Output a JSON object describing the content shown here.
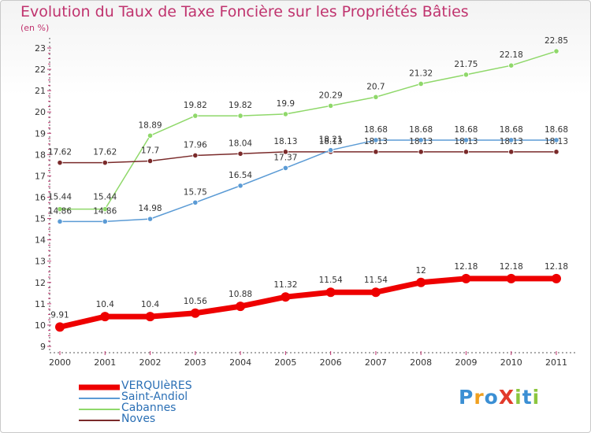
{
  "header": {
    "title": "Evolution du Taux de Taxe Foncière sur les Propriétés Bâties",
    "unit": "(en %)"
  },
  "logo": {
    "text": "ProXiti"
  },
  "chart_data": {
    "type": "line",
    "title": "Evolution du Taux de Taxe Foncière sur les Propriétés Bâties",
    "ylabel": "(en %)",
    "xlabel": "",
    "x": [
      "2000",
      "2001",
      "2002",
      "2003",
      "2004",
      "2005",
      "2006",
      "2007",
      "2008",
      "2009",
      "2010",
      "2011"
    ],
    "ylim": [
      9,
      23
    ],
    "yticks": [
      9,
      10,
      11,
      12,
      13,
      14,
      15,
      16,
      17,
      18,
      19,
      20,
      21,
      22,
      23
    ],
    "grid": "none",
    "legend_position": "bottom-left",
    "series": [
      {
        "name": "VERQUIèRES",
        "color": "#ee0000",
        "values": [
          9.91,
          10.4,
          10.4,
          10.56,
          10.88,
          11.32,
          11.54,
          11.54,
          12,
          12.18,
          12.18,
          12.18
        ]
      },
      {
        "name": "Saint-Andiol",
        "color": "#5b9bd5",
        "values": [
          14.86,
          14.86,
          14.98,
          15.75,
          16.54,
          17.37,
          18.21,
          18.68,
          18.68,
          18.68,
          18.68,
          18.68
        ]
      },
      {
        "name": "Cabannes",
        "color": "#8fd86a",
        "values": [
          15.44,
          15.44,
          18.89,
          19.82,
          19.82,
          19.9,
          20.29,
          20.7,
          21.32,
          21.75,
          22.18,
          22.85
        ]
      },
      {
        "name": "Noves",
        "color": "#7a2a2a",
        "values": [
          17.62,
          17.62,
          17.7,
          17.96,
          18.04,
          18.13,
          18.13,
          18.13,
          18.13,
          18.13,
          18.13,
          18.13
        ]
      }
    ]
  }
}
